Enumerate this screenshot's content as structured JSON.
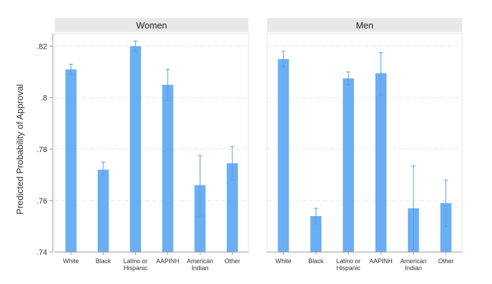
{
  "chart_data": {
    "type": "bar",
    "ylabel": "Predicted Probability of Approval",
    "ylim": [
      0.74,
      0.825
    ],
    "yticks": [
      ".74",
      ".76",
      ".78",
      ".8",
      ".82"
    ],
    "ytick_values": [
      0.74,
      0.76,
      0.78,
      0.8,
      0.82
    ],
    "grid": true,
    "bar_color": "#6aaef4",
    "panel_header_color": "#e8e8e8",
    "grid_color": "#e6e6e6",
    "categories": [
      [
        "White"
      ],
      [
        "Black"
      ],
      [
        "Latino or",
        "Hispanic"
      ],
      [
        "AAPINH"
      ],
      [
        "American",
        "Indian"
      ],
      [
        "Other"
      ]
    ],
    "panels": [
      {
        "title": "Women",
        "values": [
          0.811,
          0.772,
          0.82,
          0.805,
          0.766,
          0.7745
        ],
        "ci_upper": [
          0.813,
          0.775,
          0.822,
          0.811,
          0.7775,
          0.781
        ],
        "ci_lower": [
          0.809,
          0.77,
          0.818,
          0.799,
          0.754,
          0.768
        ]
      },
      {
        "title": "Men",
        "values": [
          0.815,
          0.754,
          0.8075,
          0.8095,
          0.757,
          0.759
        ],
        "ci_upper": [
          0.818,
          0.757,
          0.81,
          0.8175,
          0.7735,
          0.768
        ],
        "ci_lower": [
          0.812,
          0.751,
          0.805,
          0.801,
          0.741,
          0.75
        ]
      }
    ]
  }
}
